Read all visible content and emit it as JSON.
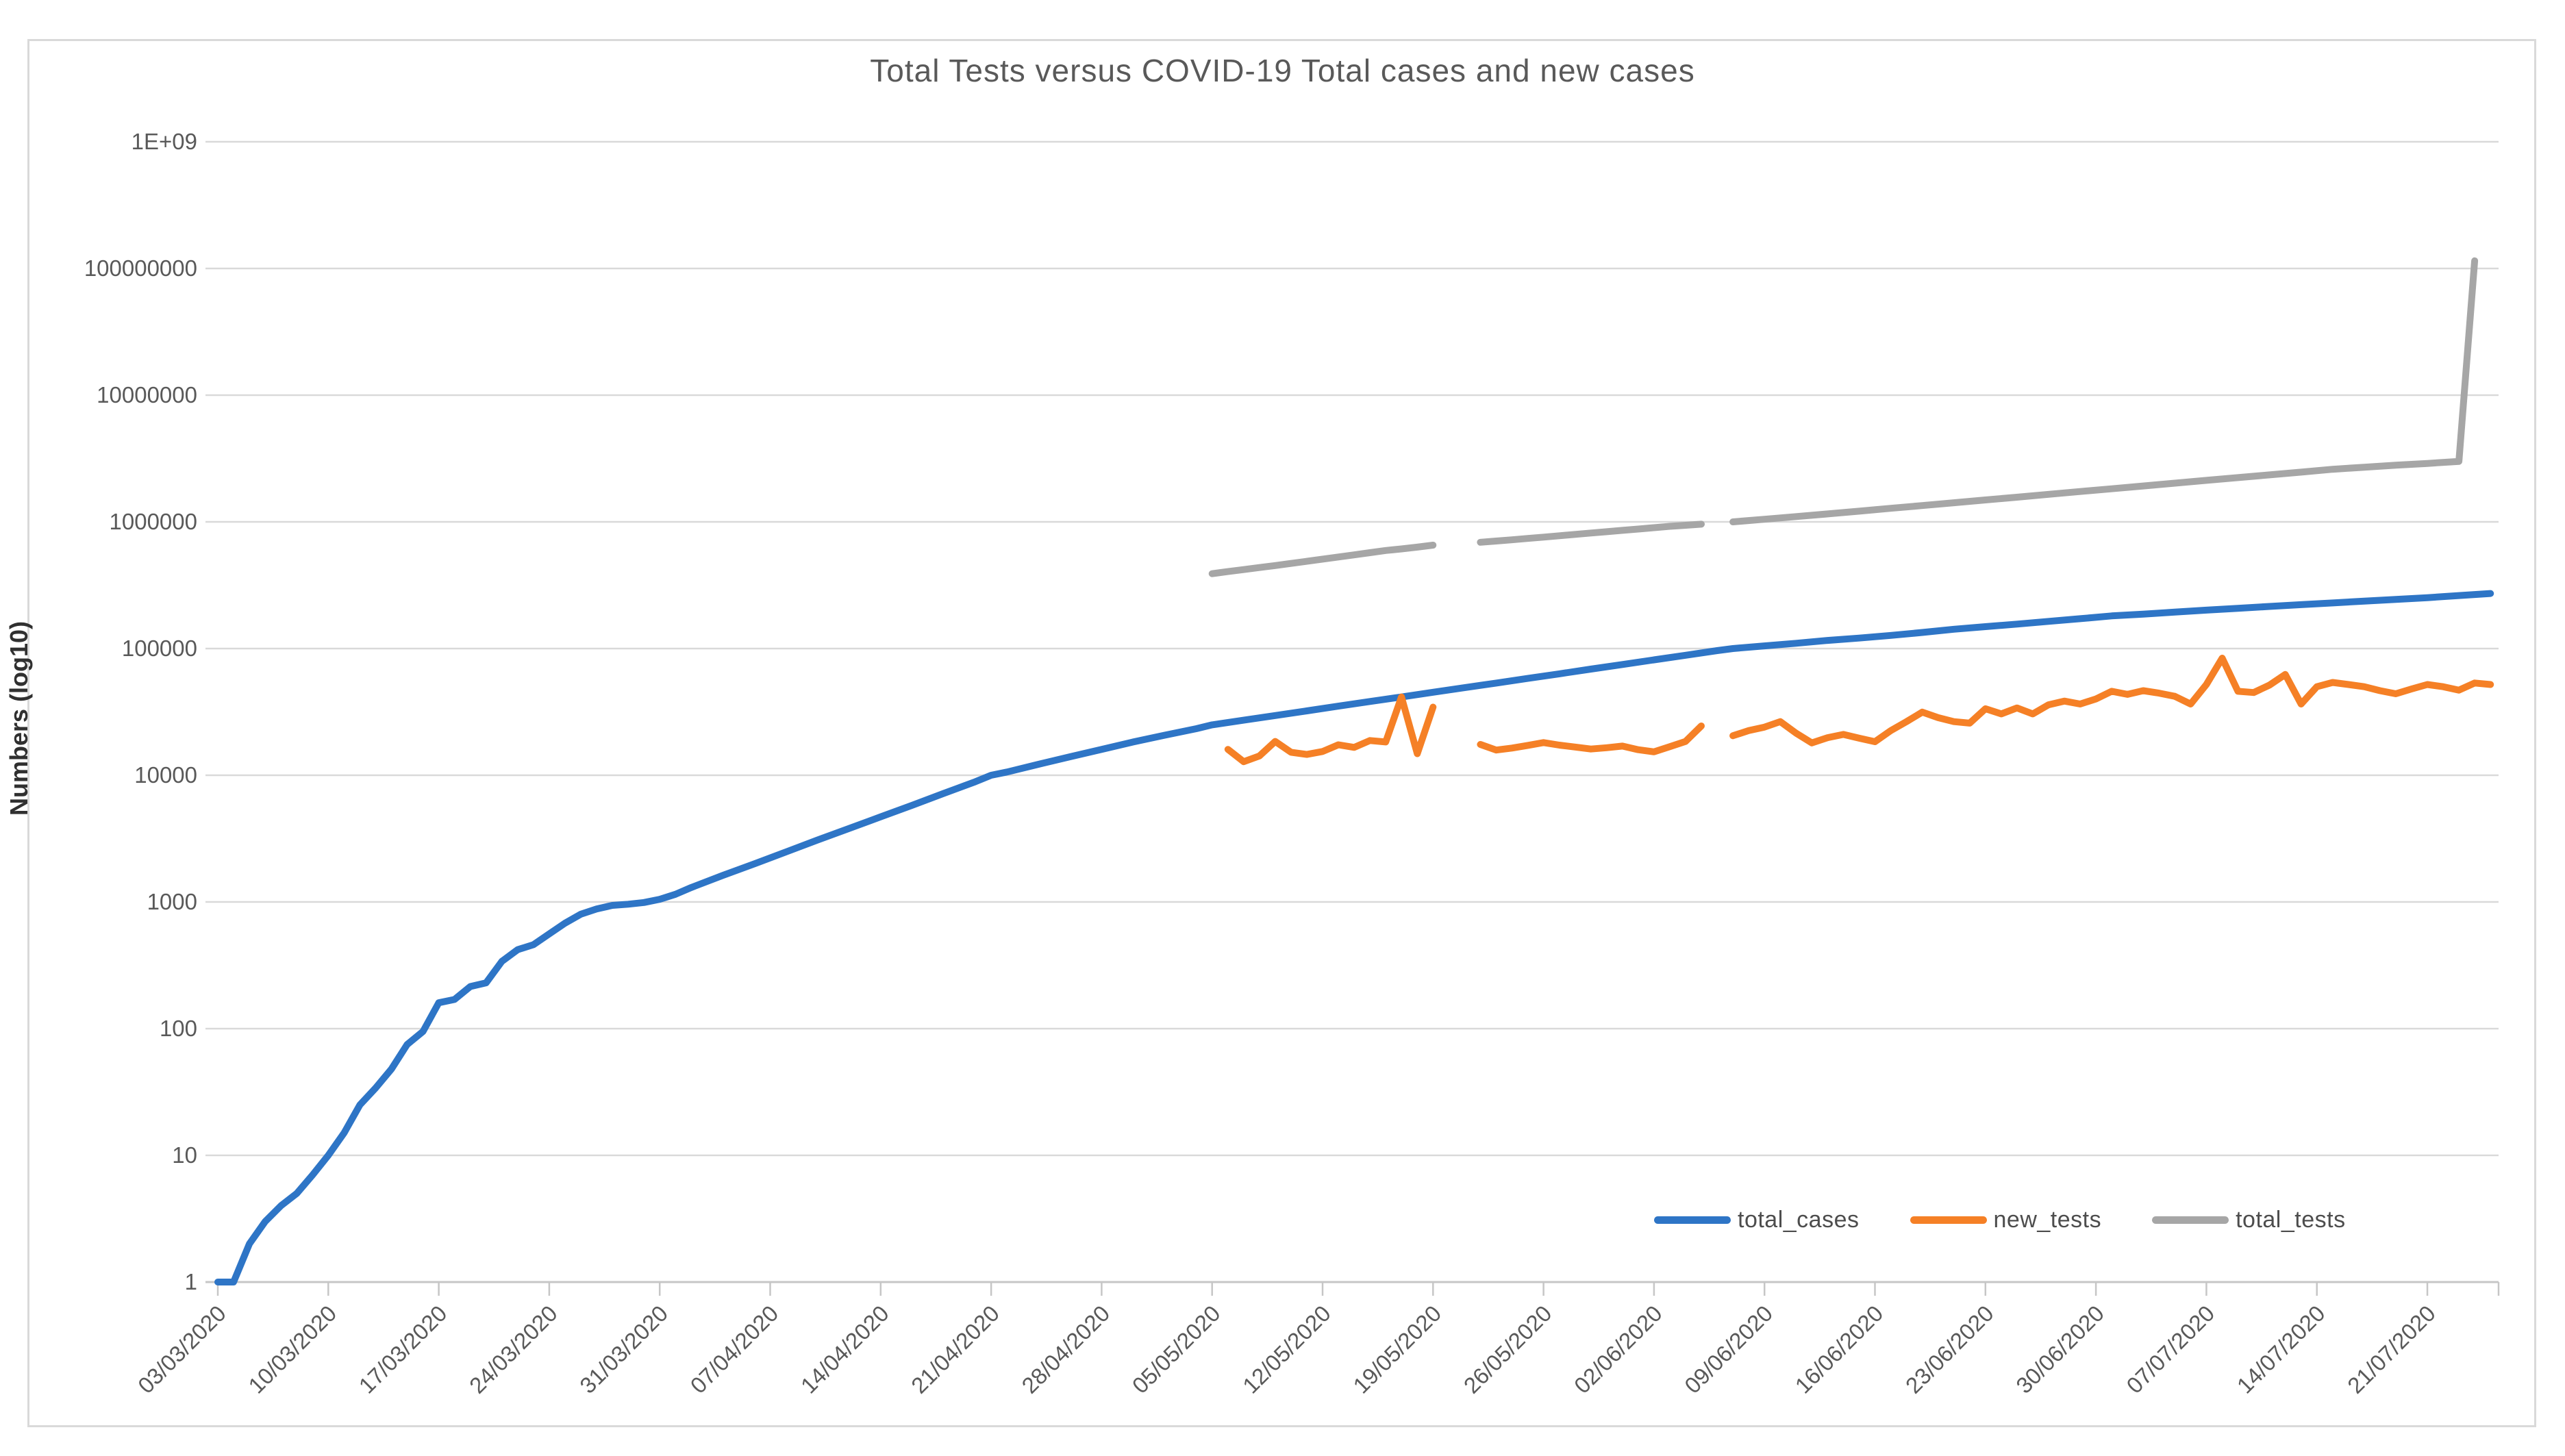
{
  "chart_data": {
    "type": "line",
    "title": "Total Tests versus COVID-19 Total cases and new cases",
    "ylabel": "Numbers (log10)",
    "y_scale": "log10",
    "ylim": [
      1,
      1000000000
    ],
    "y_tick_labels": [
      "1",
      "10",
      "100",
      "1000",
      "10000",
      "100000",
      "1000000",
      "10000000",
      "100000000",
      "1E+09"
    ],
    "x_tick_labels": [
      "03/03/2020",
      "10/03/2020",
      "17/03/2020",
      "24/03/2020",
      "31/03/2020",
      "07/04/2020",
      "14/04/2020",
      "21/04/2020",
      "28/04/2020",
      "05/05/2020",
      "12/05/2020",
      "19/05/2020",
      "26/05/2020",
      "02/06/2020",
      "09/06/2020",
      "16/06/2020",
      "23/06/2020",
      "30/06/2020",
      "07/07/2020",
      "14/07/2020",
      "21/07/2020"
    ],
    "x_unit": "day index, 0 = 03/03/2020, ticks every 7 days",
    "x_axis_days": [
      0,
      144.5
    ],
    "grid": "horizontal-log-decades",
    "legend_position": "inside-bottom-right",
    "colors": {
      "gridline": "#d9d9d9",
      "axis": "#c6c6c6",
      "tick_text": "#595959"
    },
    "series": [
      {
        "name": "total_cases",
        "color": "#2e75c6",
        "points": [
          [
            0,
            1
          ],
          [
            1,
            1
          ],
          [
            2,
            2
          ],
          [
            3,
            3
          ],
          [
            4,
            4
          ],
          [
            5,
            5
          ],
          [
            6,
            7
          ],
          [
            7,
            10
          ],
          [
            8,
            15
          ],
          [
            9,
            25
          ],
          [
            10,
            34
          ],
          [
            11,
            48
          ],
          [
            12,
            75
          ],
          [
            13,
            95
          ],
          [
            14,
            160
          ],
          [
            15,
            170
          ],
          [
            16,
            215
          ],
          [
            17,
            230
          ],
          [
            18,
            340
          ],
          [
            19,
            420
          ],
          [
            20,
            460
          ],
          [
            21,
            560
          ],
          [
            22,
            680
          ],
          [
            23,
            800
          ],
          [
            24,
            880
          ],
          [
            25,
            940
          ],
          [
            26,
            960
          ],
          [
            27,
            990
          ],
          [
            28,
            1050
          ],
          [
            29,
            1150
          ],
          [
            30,
            1300
          ],
          [
            32,
            1620
          ],
          [
            34,
            2000
          ],
          [
            36,
            2480
          ],
          [
            38,
            3080
          ],
          [
            40,
            3800
          ],
          [
            42,
            4700
          ],
          [
            44,
            5800
          ],
          [
            46,
            7200
          ],
          [
            48,
            8900
          ],
          [
            49,
            10000
          ],
          [
            50,
            10600
          ],
          [
            52,
            12200
          ],
          [
            54,
            14000
          ],
          [
            56,
            16000
          ],
          [
            58,
            18300
          ],
          [
            60,
            20700
          ],
          [
            62,
            23300
          ],
          [
            63,
            25000
          ],
          [
            65,
            27200
          ],
          [
            67,
            29600
          ],
          [
            69,
            32200
          ],
          [
            71,
            35100
          ],
          [
            73,
            38200
          ],
          [
            75,
            41500
          ],
          [
            77,
            45200
          ],
          [
            79,
            49100
          ],
          [
            81,
            53400
          ],
          [
            83,
            58100
          ],
          [
            85,
            63200
          ],
          [
            87,
            68800
          ],
          [
            89,
            74800
          ],
          [
            91,
            81400
          ],
          [
            93,
            88500
          ],
          [
            95,
            96300
          ],
          [
            96,
            100000
          ],
          [
            98,
            105000
          ],
          [
            100,
            110000
          ],
          [
            102,
            116000
          ],
          [
            104,
            121000
          ],
          [
            106,
            127000
          ],
          [
            108,
            134000
          ],
          [
            110,
            142000
          ],
          [
            112,
            149000
          ],
          [
            114,
            156000
          ],
          [
            116,
            164000
          ],
          [
            118,
            172000
          ],
          [
            120,
            181000
          ],
          [
            122,
            187000
          ],
          [
            124,
            194000
          ],
          [
            126,
            201000
          ],
          [
            128,
            208000
          ],
          [
            130,
            215000
          ],
          [
            132,
            222000
          ],
          [
            134,
            229000
          ],
          [
            136,
            237000
          ],
          [
            138,
            244000
          ],
          [
            140,
            252000
          ],
          [
            142,
            262000
          ],
          [
            144,
            272000
          ]
        ]
      },
      {
        "name": "new_tests",
        "color": "#f58026",
        "segments": [
          [
            [
              64,
              16000
            ],
            [
              65,
              12800
            ],
            [
              66,
              14200
            ],
            [
              67,
              18500
            ],
            [
              68,
              15200
            ],
            [
              69,
              14600
            ],
            [
              70,
              15400
            ],
            [
              71,
              17400
            ],
            [
              72,
              16600
            ],
            [
              73,
              18800
            ],
            [
              74,
              18300
            ],
            [
              75,
              41500
            ],
            [
              76,
              14800
            ],
            [
              77,
              34500
            ]
          ],
          [
            [
              80,
              17500
            ],
            [
              81,
              15800
            ],
            [
              82,
              16400
            ],
            [
              83,
              17200
            ],
            [
              84,
              18100
            ],
            [
              85,
              17300
            ],
            [
              86,
              16700
            ],
            [
              87,
              16100
            ],
            [
              88,
              16500
            ],
            [
              89,
              17000
            ],
            [
              90,
              15900
            ],
            [
              91,
              15300
            ],
            [
              92,
              16800
            ],
            [
              93,
              18500
            ],
            [
              94,
              24500
            ]
          ],
          [
            [
              96,
              20500
            ],
            [
              97,
              22500
            ],
            [
              98,
              24000
            ],
            [
              99,
              26500
            ],
            [
              100,
              21500
            ],
            [
              101,
              18000
            ],
            [
              102,
              19800
            ],
            [
              103,
              21000
            ],
            [
              104,
              19600
            ],
            [
              105,
              18400
            ],
            [
              106,
              22500
            ],
            [
              107,
              26500
            ],
            [
              108,
              31500
            ],
            [
              109,
              28500
            ],
            [
              110,
              26500
            ],
            [
              111,
              25800
            ],
            [
              112,
              33500
            ],
            [
              113,
              30500
            ],
            [
              114,
              34000
            ],
            [
              115,
              30500
            ],
            [
              116,
              36000
            ],
            [
              117,
              38500
            ],
            [
              118,
              36500
            ],
            [
              119,
              40000
            ],
            [
              120,
              46000
            ],
            [
              121,
              43500
            ],
            [
              122,
              46500
            ],
            [
              123,
              44500
            ],
            [
              124,
              42000
            ],
            [
              125,
              36500
            ],
            [
              126,
              52000
            ],
            [
              127,
              84000
            ],
            [
              128,
              46000
            ],
            [
              129,
              45000
            ],
            [
              130,
              51500
            ],
            [
              131,
              62500
            ],
            [
              132,
              36500
            ],
            [
              133,
              50000
            ],
            [
              134,
              54000
            ],
            [
              135,
              52000
            ],
            [
              136,
              50000
            ],
            [
              137,
              46500
            ],
            [
              138,
              44000
            ],
            [
              139,
              48000
            ],
            [
              140,
              52000
            ],
            [
              141,
              50000
            ],
            [
              142,
              47000
            ],
            [
              143,
              53500
            ],
            [
              144,
              52000
            ]
          ]
        ]
      },
      {
        "name": "total_tests",
        "color": "#a6a6a6",
        "segments": [
          [
            [
              63,
              390000
            ],
            [
              64,
              405000
            ],
            [
              65,
              420000
            ],
            [
              66,
              436000
            ],
            [
              67,
              452000
            ],
            [
              68,
              470000
            ],
            [
              69,
              488000
            ],
            [
              70,
              508000
            ],
            [
              71,
              528000
            ],
            [
              72,
              549000
            ],
            [
              73,
              571000
            ],
            [
              74,
              594000
            ],
            [
              75,
              612000
            ],
            [
              76,
              632000
            ],
            [
              77,
              655000
            ]
          ],
          [
            [
              80,
              690000
            ],
            [
              81,
              706000
            ],
            [
              82,
              722000
            ],
            [
              83,
              740000
            ],
            [
              84,
              758000
            ],
            [
              85,
              777000
            ],
            [
              86,
              796000
            ],
            [
              87,
              816000
            ],
            [
              88,
              836000
            ],
            [
              89,
              857000
            ],
            [
              90,
              878000
            ],
            [
              91,
              900000
            ],
            [
              92,
              922000
            ],
            [
              93,
              940000
            ],
            [
              94,
              958000
            ]
          ],
          [
            [
              96,
              1000000
            ],
            [
              98,
              1048000
            ],
            [
              100,
              1100000
            ],
            [
              102,
              1155000
            ],
            [
              104,
              1215000
            ],
            [
              106,
              1280000
            ],
            [
              108,
              1345000
            ],
            [
              110,
              1415000
            ],
            [
              112,
              1490000
            ],
            [
              114,
              1565000
            ],
            [
              116,
              1650000
            ],
            [
              118,
              1735000
            ],
            [
              120,
              1825000
            ],
            [
              122,
              1920000
            ],
            [
              124,
              2020000
            ],
            [
              126,
              2125000
            ],
            [
              128,
              2235000
            ],
            [
              130,
              2350000
            ],
            [
              132,
              2470000
            ],
            [
              134,
              2600000
            ],
            [
              136,
              2700000
            ],
            [
              138,
              2800000
            ],
            [
              140,
              2890000
            ],
            [
              142,
              3000000
            ],
            [
              143,
              115000000
            ]
          ]
        ]
      }
    ]
  }
}
